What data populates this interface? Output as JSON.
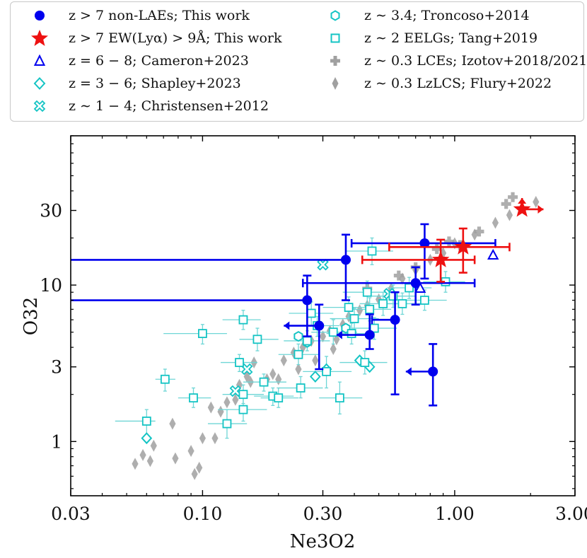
{
  "chart_data": {
    "type": "scatter",
    "xlabel": "Ne3O2",
    "ylabel": "O32",
    "xscale": "log",
    "yscale": "log",
    "xlim": [
      0.03,
      3.0
    ],
    "ylim": [
      0.45,
      90
    ],
    "xticks": [
      0.03,
      0.1,
      0.3,
      1.0,
      3.0
    ],
    "xtick_labels": [
      "0.03",
      "0.10",
      "0.30",
      "1.00",
      "3.00"
    ],
    "yticks": [
      1,
      3,
      10,
      30
    ],
    "ytick_labels": [
      "1",
      "3",
      "10",
      "30"
    ],
    "legend": [
      {
        "key": "nonlae",
        "label": "z > 7 non-LAEs; This work",
        "marker": "filled-circle",
        "color": "#0000ee"
      },
      {
        "key": "lae",
        "label": "z > 7 EW(Lyα) > 9Å; This work",
        "marker": "filled-star",
        "color": "#ee1111"
      },
      {
        "key": "cameron",
        "label": "z = 6 − 8; Cameron+2023",
        "marker": "open-triangle",
        "color": "#0000ee"
      },
      {
        "key": "shapley",
        "label": "z = 3 − 6; Shapley+2023",
        "marker": "open-diamond",
        "color": "#14c4c4"
      },
      {
        "key": "christensen",
        "label": "z ∼ 1 − 4; Christensen+2012",
        "marker": "open-x",
        "color": "#14c4c4"
      },
      {
        "key": "troncoso",
        "label": "z ∼ 3.4; Troncoso+2014",
        "marker": "open-hexagon",
        "color": "#14c4c4"
      },
      {
        "key": "tang",
        "label": "z ∼ 2 EELGs; Tang+2019",
        "marker": "open-square",
        "color": "#14c4c4"
      },
      {
        "key": "izotov",
        "label": "z ∼ 0.3 LCEs; Izotov+2018/2021",
        "marker": "filled-plus",
        "color": "#a0a0a0"
      },
      {
        "key": "flury",
        "label": "z ∼ 0.3 LzLCS; Flury+2022",
        "marker": "filled-diamond",
        "color": "#a0a0a0"
      }
    ],
    "series": [
      {
        "name": "z > 7 non-LAEs; This work",
        "marker": "filled-circle",
        "color": "#0000ee",
        "points": [
          {
            "x": 0.26,
            "y": 8.0,
            "ylo": 4.7,
            "yhi": 11.5,
            "xlo": 0.0,
            "xhi": 0.0,
            "xlimit_lo": 0.03
          },
          {
            "x": 0.37,
            "y": 14.5,
            "ylo": 8.0,
            "yhi": 21.0,
            "xlo": 0.0,
            "xhi": 0.0,
            "xlimit_lo": 0.03
          },
          {
            "x": 0.29,
            "y": 5.5,
            "ylo": 2.9,
            "yhi": 7.5,
            "xlimit_lo": 0.21
          },
          {
            "x": 0.46,
            "y": 4.8,
            "ylo": 3.9,
            "yhi": 6.5,
            "xlimit_lo": 0.34
          },
          {
            "x": 0.58,
            "y": 6.0,
            "ylo": 2.0,
            "yhi": 9.0,
            "xlo": 0.47,
            "xhi": 0.0
          },
          {
            "x": 0.76,
            "y": 18.5,
            "ylo": 11.0,
            "yhi": 24.5,
            "xlo": 0.39,
            "xhi": 1.45
          },
          {
            "x": 0.7,
            "y": 10.3,
            "ylo": 7.5,
            "yhi": 13.0,
            "xlo": 0.25,
            "xhi": 1.2
          },
          {
            "x": 0.82,
            "y": 2.8,
            "ylo": 1.7,
            "yhi": 4.2,
            "xlimit_lo": 0.64
          }
        ]
      },
      {
        "name": "z > 7 EW(Lyα) > 9Å; This work",
        "marker": "filled-star",
        "color": "#ee1111",
        "points": [
          {
            "x": 0.88,
            "y": 14.5,
            "ylo": 10.5,
            "yhi": 19.5,
            "xlo": 0.43,
            "xhi": 1.2
          },
          {
            "x": 1.08,
            "y": 17.5,
            "ylo": 12.0,
            "yhi": 23.0,
            "xlo": 0.55,
            "xhi": 1.65
          },
          {
            "x": 1.85,
            "y": 30.5,
            "xlimit_hi": 2.25,
            "ylimit_hi": 36.0
          }
        ]
      },
      {
        "name": "z = 6 − 8; Cameron+2023",
        "marker": "open-triangle",
        "color": "#0000ee",
        "points": [
          {
            "x": 1.42,
            "y": 15.5
          },
          {
            "x": 0.73,
            "y": 9.5
          }
        ]
      },
      {
        "name": "z = 3 − 6; Shapley+2023",
        "marker": "open-diamond",
        "color": "#14c4c4",
        "points": [
          {
            "x": 0.06,
            "y": 1.05
          },
          {
            "x": 0.28,
            "y": 2.6
          },
          {
            "x": 0.31,
            "y": 2.9
          },
          {
            "x": 0.42,
            "y": 3.3
          },
          {
            "x": 0.46,
            "y": 3.0
          }
        ]
      },
      {
        "name": "z ∼ 1 − 4; Christensen+2012",
        "marker": "open-x",
        "color": "#14c4c4",
        "points": [
          {
            "x": 0.3,
            "y": 13.5
          },
          {
            "x": 0.15,
            "y": 2.9
          },
          {
            "x": 0.135,
            "y": 2.1
          },
          {
            "x": 0.55,
            "y": 8.8
          }
        ]
      },
      {
        "name": "z ∼ 3.4; Troncoso+2014",
        "marker": "open-hexagon",
        "color": "#14c4c4",
        "points": [
          {
            "x": 0.24,
            "y": 4.7
          },
          {
            "x": 0.26,
            "y": 4.3
          },
          {
            "x": 0.37,
            "y": 5.3
          }
        ]
      },
      {
        "name": "z ∼ 2 EELGs; Tang+2019",
        "marker": "open-square",
        "color": "#14c4c4",
        "points": [
          {
            "x": 0.06,
            "y": 1.35,
            "xlo": 0.045,
            "xhi": 0.065,
            "ylo": 1.1,
            "yhi": 1.6
          },
          {
            "x": 0.071,
            "y": 2.5,
            "xlo": 0.065,
            "xhi": 0.078,
            "ylo": 2.1,
            "yhi": 2.9
          },
          {
            "x": 0.1,
            "y": 4.9,
            "xlo": 0.07,
            "xhi": 0.125,
            "ylo": 4.2,
            "yhi": 5.6
          },
          {
            "x": 0.092,
            "y": 1.9,
            "xlo": 0.08,
            "xhi": 0.108,
            "ylo": 1.65,
            "yhi": 2.2
          },
          {
            "x": 0.125,
            "y": 1.3,
            "xlo": 0.105,
            "xhi": 0.15,
            "ylo": 1.05,
            "yhi": 1.6
          },
          {
            "x": 0.145,
            "y": 6.0,
            "xlo": 0.12,
            "xhi": 0.17,
            "ylo": 5.2,
            "yhi": 6.9
          },
          {
            "x": 0.14,
            "y": 3.2,
            "xlo": 0.118,
            "xhi": 0.165,
            "ylo": 2.8,
            "yhi": 3.6
          },
          {
            "x": 0.145,
            "y": 2.0,
            "xlo": 0.12,
            "xhi": 0.175,
            "ylo": 1.75,
            "yhi": 2.3
          },
          {
            "x": 0.145,
            "y": 1.6,
            "xlo": 0.115,
            "xhi": 0.18,
            "ylo": 1.35,
            "yhi": 1.9
          },
          {
            "x": 0.165,
            "y": 4.5,
            "xlo": 0.14,
            "xhi": 0.2,
            "ylo": 3.8,
            "yhi": 5.3
          },
          {
            "x": 0.175,
            "y": 2.4,
            "xlo": 0.145,
            "xhi": 0.215,
            "ylo": 2.1,
            "yhi": 2.7
          },
          {
            "x": 0.19,
            "y": 1.95,
            "xlo": 0.16,
            "xhi": 0.23,
            "ylo": 1.7,
            "yhi": 2.2
          },
          {
            "x": 0.2,
            "y": 1.9,
            "xlo": 0.17,
            "xhi": 0.24,
            "ylo": 1.65,
            "yhi": 2.2
          },
          {
            "x": 0.24,
            "y": 3.6,
            "xlo": 0.2,
            "xhi": 0.29,
            "ylo": 3.1,
            "yhi": 4.2
          },
          {
            "x": 0.245,
            "y": 2.2,
            "xlo": 0.2,
            "xhi": 0.3,
            "ylo": 1.9,
            "yhi": 2.6
          },
          {
            "x": 0.26,
            "y": 4.4,
            "xlo": 0.21,
            "xhi": 0.32,
            "ylo": 3.8,
            "yhi": 5.1
          },
          {
            "x": 0.27,
            "y": 6.6,
            "xlo": 0.22,
            "xhi": 0.33,
            "ylo": 5.5,
            "yhi": 7.8
          },
          {
            "x": 0.285,
            "y": 5.5,
            "xlo": 0.23,
            "xhi": 0.35,
            "ylo": 4.7,
            "yhi": 6.3
          },
          {
            "x": 0.31,
            "y": 2.8,
            "xlo": 0.25,
            "xhi": 0.39,
            "ylo": 2.2,
            "yhi": 3.5
          },
          {
            "x": 0.33,
            "y": 5.0,
            "xlo": 0.27,
            "xhi": 0.41,
            "ylo": 4.2,
            "yhi": 6.0
          },
          {
            "x": 0.35,
            "y": 1.9,
            "xlo": 0.29,
            "xhi": 0.43,
            "ylo": 1.5,
            "yhi": 2.4
          },
          {
            "x": 0.38,
            "y": 7.2,
            "xlo": 0.3,
            "xhi": 0.48,
            "ylo": 6.2,
            "yhi": 8.4
          },
          {
            "x": 0.39,
            "y": 4.9,
            "xlo": 0.31,
            "xhi": 0.48,
            "ylo": 4.2,
            "yhi": 5.7
          },
          {
            "x": 0.4,
            "y": 6.1,
            "xlo": 0.32,
            "xhi": 0.5,
            "ylo": 5.2,
            "yhi": 7.1
          },
          {
            "x": 0.44,
            "y": 3.2,
            "xlo": 0.35,
            "xhi": 0.54,
            "ylo": 2.7,
            "yhi": 3.8
          },
          {
            "x": 0.45,
            "y": 9.0,
            "xlo": 0.36,
            "xhi": 0.56,
            "ylo": 7.6,
            "yhi": 10.6
          },
          {
            "x": 0.46,
            "y": 7.0,
            "xlo": 0.37,
            "xhi": 0.56,
            "ylo": 5.9,
            "yhi": 8.3
          },
          {
            "x": 0.47,
            "y": 16.5,
            "xlo": 0.37,
            "xhi": 0.57,
            "ylo": 13.5,
            "yhi": 20.0
          },
          {
            "x": 0.48,
            "y": 5.3,
            "xlo": 0.39,
            "xhi": 0.59,
            "ylo": 4.5,
            "yhi": 6.2
          },
          {
            "x": 0.52,
            "y": 7.6,
            "xlo": 0.42,
            "xhi": 0.64,
            "ylo": 6.4,
            "yhi": 9.0
          },
          {
            "x": 0.57,
            "y": 8.5,
            "xlo": 0.46,
            "xhi": 0.7,
            "ylo": 7.2,
            "yhi": 10.0
          },
          {
            "x": 0.62,
            "y": 7.6,
            "xlo": 0.5,
            "xhi": 0.76,
            "ylo": 6.5,
            "yhi": 8.9
          },
          {
            "x": 0.66,
            "y": 9.6,
            "xlo": 0.54,
            "xhi": 0.81,
            "ylo": 8.2,
            "yhi": 11.2
          },
          {
            "x": 0.76,
            "y": 8.0,
            "xlo": 0.62,
            "xhi": 0.93,
            "ylo": 6.9,
            "yhi": 9.3
          },
          {
            "x": 0.92,
            "y": 10.5,
            "xlo": 0.75,
            "xhi": 1.1,
            "ylo": 9.0,
            "yhi": 12.2
          }
        ]
      },
      {
        "name": "z ∼ 0.3 LCEs; Izotov+2018/2021",
        "marker": "filled-plus",
        "color": "#a0a0a0",
        "points": [
          {
            "x": 0.45,
            "y": 9.5
          },
          {
            "x": 0.6,
            "y": 11.5
          },
          {
            "x": 0.7,
            "y": 13.0
          },
          {
            "x": 0.85,
            "y": 17.0
          },
          {
            "x": 0.95,
            "y": 19.0
          },
          {
            "x": 1.05,
            "y": 18.0
          },
          {
            "x": 1.25,
            "y": 22.0
          },
          {
            "x": 1.7,
            "y": 36.5
          },
          {
            "x": 1.6,
            "y": 33.0
          }
        ]
      },
      {
        "name": "z ∼ 0.3 LzLCS; Flury+2022",
        "marker": "filled-diamond",
        "color": "#a0a0a0",
        "points": [
          {
            "x": 0.054,
            "y": 0.72
          },
          {
            "x": 0.058,
            "y": 0.82
          },
          {
            "x": 0.062,
            "y": 0.75
          },
          {
            "x": 0.064,
            "y": 0.94
          },
          {
            "x": 0.078,
            "y": 0.78
          },
          {
            "x": 0.076,
            "y": 1.3
          },
          {
            "x": 0.09,
            "y": 0.87
          },
          {
            "x": 0.093,
            "y": 0.62
          },
          {
            "x": 0.097,
            "y": 0.68
          },
          {
            "x": 0.1,
            "y": 1.05
          },
          {
            "x": 0.108,
            "y": 1.65
          },
          {
            "x": 0.112,
            "y": 1.05
          },
          {
            "x": 0.118,
            "y": 1.55
          },
          {
            "x": 0.125,
            "y": 1.78
          },
          {
            "x": 0.135,
            "y": 1.85
          },
          {
            "x": 0.14,
            "y": 2.3
          },
          {
            "x": 0.15,
            "y": 2.6
          },
          {
            "x": 0.155,
            "y": 2.4
          },
          {
            "x": 0.16,
            "y": 3.2
          },
          {
            "x": 0.19,
            "y": 2.7
          },
          {
            "x": 0.2,
            "y": 2.5
          },
          {
            "x": 0.21,
            "y": 3.3
          },
          {
            "x": 0.23,
            "y": 3.7
          },
          {
            "x": 0.25,
            "y": 4.0
          },
          {
            "x": 0.27,
            "y": 4.4
          },
          {
            "x": 0.3,
            "y": 4.7
          },
          {
            "x": 0.32,
            "y": 5.1
          },
          {
            "x": 0.34,
            "y": 4.5
          },
          {
            "x": 0.36,
            "y": 5.6
          },
          {
            "x": 0.38,
            "y": 6.3
          },
          {
            "x": 0.42,
            "y": 6.9
          },
          {
            "x": 0.45,
            "y": 7.4
          },
          {
            "x": 0.5,
            "y": 8.1
          },
          {
            "x": 0.56,
            "y": 9.5
          },
          {
            "x": 0.62,
            "y": 11.0
          },
          {
            "x": 0.7,
            "y": 12.5
          },
          {
            "x": 0.8,
            "y": 14.5
          },
          {
            "x": 0.9,
            "y": 16.0
          },
          {
            "x": 1.0,
            "y": 18.5
          },
          {
            "x": 1.2,
            "y": 21.0
          },
          {
            "x": 1.45,
            "y": 25.0
          },
          {
            "x": 1.65,
            "y": 28.0
          },
          {
            "x": 2.1,
            "y": 34.0
          },
          {
            "x": 0.28,
            "y": 3.3
          },
          {
            "x": 0.33,
            "y": 3.9
          },
          {
            "x": 0.24,
            "y": 2.9
          },
          {
            "x": 0.18,
            "y": 2.5
          }
        ]
      }
    ]
  }
}
